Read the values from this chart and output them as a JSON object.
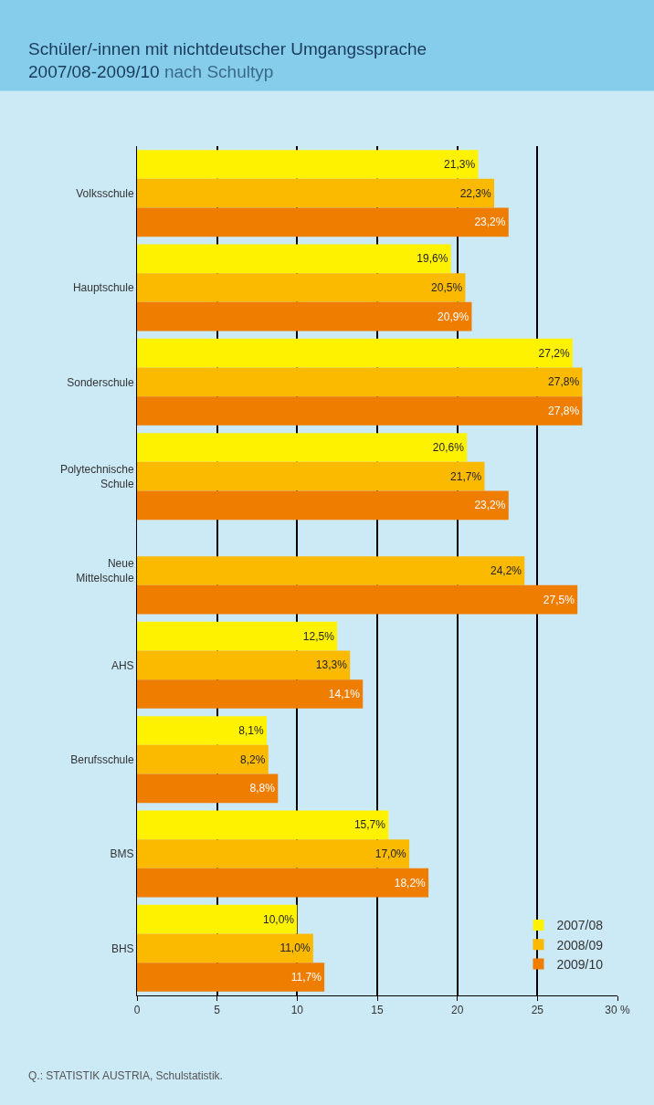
{
  "chart_data": {
    "type": "bar",
    "orientation": "horizontal",
    "title": "Schüler/-innen mit nichtdeutscher Umgangssprache 2007/08-2009/10",
    "subtitle": "nach Schultyp",
    "categories": [
      "Volksschule",
      "Hauptschule",
      "Sonderschule",
      "Polytechnische Schule",
      "Neue Mittelschule",
      "AHS",
      "Berufsschule",
      "BMS",
      "BHS"
    ],
    "series": [
      {
        "name": "2007/08",
        "color": "#fff200",
        "values": [
          21.3,
          19.6,
          27.2,
          20.6,
          null,
          12.5,
          8.1,
          15.7,
          10.0
        ],
        "value_labels": [
          "21,3%",
          "19,6%",
          "27,2%",
          "20,6%",
          null,
          "12,5%",
          "8,1%",
          "15,7%",
          "10,0%"
        ]
      },
      {
        "name": "2008/09",
        "color": "#fbb900",
        "values": [
          22.3,
          20.5,
          27.8,
          21.7,
          24.2,
          13.3,
          8.2,
          17.0,
          11.0
        ],
        "value_labels": [
          "22,3%",
          "20,5%",
          "27,8%",
          "21,7%",
          "24,2%",
          "13,3%",
          "8,2%",
          "17,0%",
          "11,0%"
        ]
      },
      {
        "name": "2009/10",
        "color": "#ee7d00",
        "values": [
          23.2,
          20.9,
          27.8,
          23.2,
          27.5,
          14.1,
          8.8,
          18.2,
          11.7
        ],
        "value_labels": [
          "23,2%",
          "20,9%",
          "27,8%",
          "23,2%",
          "27,5%",
          "14,1%",
          "8,8%",
          "18,2%",
          "11,7%"
        ]
      }
    ],
    "xlim": [
      0,
      30
    ],
    "xticks": [
      0,
      5,
      10,
      15,
      20,
      25,
      {
        "value": 30,
        "label": "30 %"
      }
    ],
    "grid": "x",
    "legend": "bottom right",
    "annotations": [
      "Q.: STATISTIK AUSTRIA, Schulstatistik."
    ]
  }
}
